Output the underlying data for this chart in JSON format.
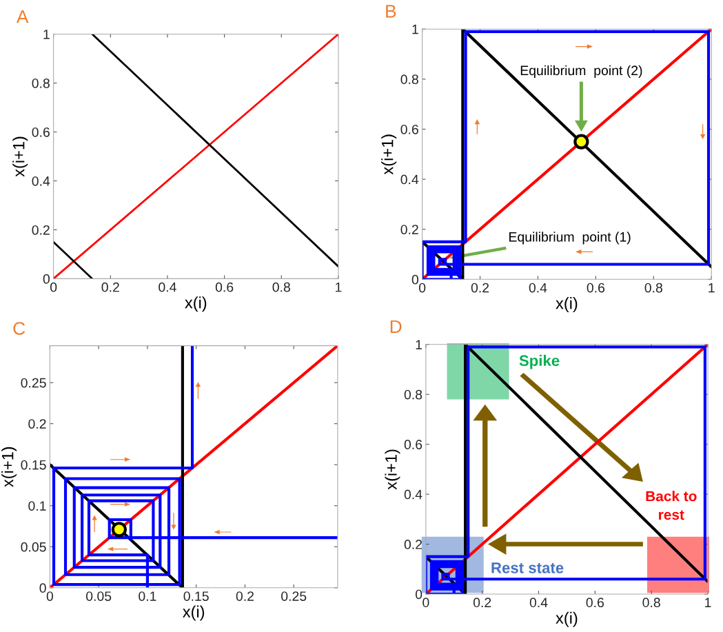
{
  "chart_data": [
    {
      "type": "line",
      "title": "A",
      "xlabel": "x(i)",
      "ylabel": "x(i+1)",
      "xlim": [
        0,
        1
      ],
      "ylim": [
        0,
        1
      ],
      "xticks": [
        0,
        0.2,
        0.4,
        0.6,
        0.8,
        1
      ],
      "yticks": [
        0,
        0.2,
        0.4,
        0.6,
        0.8,
        1
      ],
      "grid": false,
      "legend": false,
      "series": [
        {
          "color": "#ff0000",
          "x": [
            0,
            1
          ],
          "values": [
            0,
            1
          ]
        },
        {
          "color": "#000000",
          "x": [
            0,
            0.136
          ],
          "values": [
            0.15,
            0
          ]
        },
        {
          "color": "#000000",
          "x": [
            0.136,
            1
          ],
          "values": [
            1,
            0.05
          ]
        }
      ]
    },
    {
      "type": "line",
      "title": "B",
      "xlabel": "x(i)",
      "ylabel": "x(i+1)",
      "xlim": [
        0,
        1
      ],
      "ylim": [
        0,
        1
      ],
      "xticks": [
        0,
        0.2,
        0.4,
        0.6,
        0.8,
        1
      ],
      "yticks": [
        0,
        0.2,
        0.4,
        0.6,
        0.8,
        1
      ],
      "grid": false,
      "legend": false,
      "annotations": [
        "Equilibrium  point (2)",
        "Equilibrium  point (1)"
      ],
      "series": [
        {
          "color": "#ff0000",
          "x": [
            0,
            1
          ],
          "values": [
            0,
            1
          ]
        },
        {
          "color": "#000000",
          "x": [
            0,
            0.14,
            0.14,
            1
          ],
          "values": [
            0.15,
            0,
            1,
            0.05
          ]
        },
        {
          "color": "#0000ff",
          "x": [
            0.1,
            0.1,
            0.04,
            0.04,
            0.11,
            0.11,
            0.03,
            0.03,
            0.11,
            0.11,
            0.03,
            0.03,
            0.12,
            0.12,
            0.02,
            0.02,
            0.13,
            0.13,
            0,
            0,
            0.15,
            0.15,
            0.99,
            0.99,
            0.06,
            0.06,
            0.08,
            0.08
          ],
          "values": [
            0,
            0.04,
            0.04,
            0.11,
            0.11,
            0.03,
            0.03,
            0.11,
            0.11,
            0.03,
            0.03,
            0.12,
            0.12,
            0.02,
            0.02,
            0.13,
            0.13,
            0,
            0,
            0.15,
            0.15,
            0.99,
            0.99,
            0.06,
            0.06,
            0.08,
            0.08,
            0.06
          ]
        },
        {
          "type": "scatter",
          "color": "#ffff00",
          "marker": "circle",
          "x": [
            0.55
          ],
          "values": [
            0.55
          ]
        }
      ]
    },
    {
      "type": "line",
      "title": "C",
      "xlabel": "x(i)",
      "ylabel": "x(i+1)",
      "xlim": [
        0,
        0.295
      ],
      "ylim": [
        0,
        0.295
      ],
      "xticks": [
        0,
        0.05,
        0.1,
        0.15,
        0.2,
        0.25
      ],
      "yticks": [
        0,
        0.05,
        0.1,
        0.15,
        0.2,
        0.25
      ],
      "grid": false,
      "legend": false,
      "series": [
        {
          "color": "#ff0000",
          "x": [
            0,
            0.295
          ],
          "values": [
            0,
            0.295
          ]
        },
        {
          "color": "#000000",
          "x": [
            0,
            0.136,
            0.136
          ],
          "values": [
            0.15,
            0,
            0.295
          ]
        },
        {
          "color": "#0000ff",
          "x": [
            0.1,
            0.1,
            0.04,
            0.04,
            0.106,
            0.106,
            0.033,
            0.033,
            0.113,
            0.113,
            0.025,
            0.025,
            0.122,
            0.122,
            0.016,
            0.016,
            0.133,
            0.133,
            0.004,
            0.004,
            0.146,
            0.146,
            null,
            0.295,
            0.061,
            0.061,
            0.083,
            0.083
          ],
          "values": [
            0,
            0.04,
            0.04,
            0.106,
            0.106,
            0.033,
            0.033,
            0.113,
            0.113,
            0.025,
            0.025,
            0.122,
            0.122,
            0.016,
            0.016,
            0.133,
            0.133,
            0.004,
            0.004,
            0.146,
            0.146,
            0.295,
            null,
            0.061,
            0.061,
            0.083,
            0.083,
            0.059
          ]
        },
        {
          "type": "scatter",
          "color": "#ffff00",
          "marker": "circle",
          "x": [
            0.071
          ],
          "values": [
            0.071
          ]
        }
      ]
    },
    {
      "type": "line",
      "title": "D",
      "xlabel": "x(i)",
      "ylabel": "x(i+1)",
      "xlim": [
        0,
        1
      ],
      "ylim": [
        0,
        1
      ],
      "xticks": [
        0,
        0.2,
        0.4,
        0.6,
        0.8,
        1
      ],
      "yticks": [
        0,
        0.2,
        0.4,
        0.6,
        0.8,
        1
      ],
      "grid": false,
      "legend": false,
      "annotations": [
        "Spike",
        "Back to\nrest",
        "Rest state"
      ],
      "series": [
        {
          "color": "#ff0000",
          "x": [
            0,
            1
          ],
          "values": [
            0,
            1
          ]
        },
        {
          "color": "#000000",
          "x": [
            0,
            0.14,
            0.14,
            1
          ],
          "values": [
            0.15,
            0,
            1,
            0.05
          ]
        },
        {
          "color": "#0000ff",
          "x": [
            0.1,
            0.1,
            0.04,
            0.04,
            0.11,
            0.11,
            0.03,
            0.03,
            0.11,
            0.11,
            0.03,
            0.03,
            0.12,
            0.12,
            0.02,
            0.02,
            0.13,
            0.13,
            0,
            0,
            0.15,
            0.15,
            0.99,
            0.99,
            0.06,
            0.06,
            0.08,
            0.08
          ],
          "values": [
            0,
            0.04,
            0.04,
            0.11,
            0.11,
            0.03,
            0.03,
            0.11,
            0.11,
            0.03,
            0.03,
            0.12,
            0.12,
            0.02,
            0.02,
            0.13,
            0.13,
            0,
            0,
            0.15,
            0.15,
            0.99,
            0.99,
            0.06,
            0.06,
            0.08,
            0.08,
            0.06
          ]
        }
      ]
    }
  ]
}
